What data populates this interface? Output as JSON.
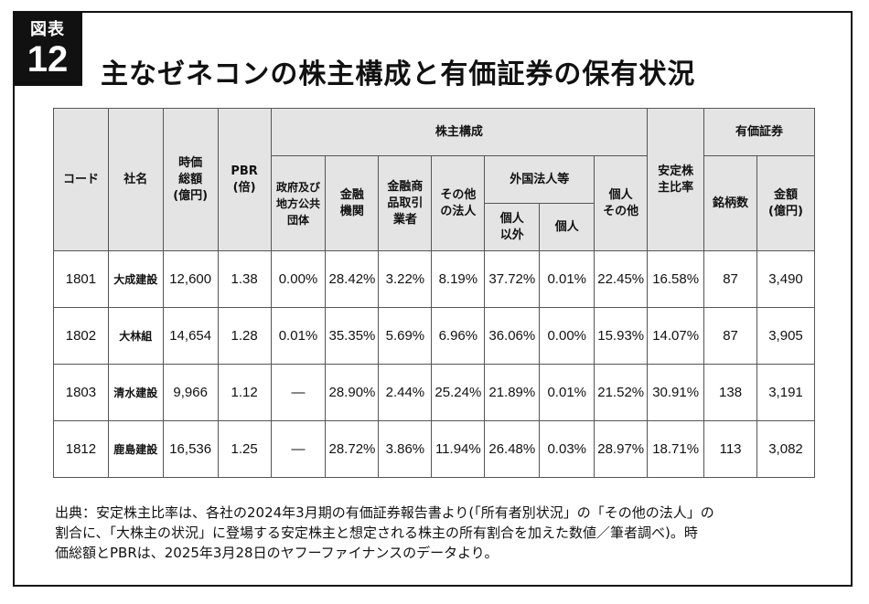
{
  "badge": {
    "label": "図表",
    "number": "12"
  },
  "title": "主なゼネコンの株主構成と有価証券の保有状況",
  "table": {
    "headers": {
      "code": "コード",
      "company": "社名",
      "market_cap": "時価\n総額\n(億円)",
      "pbr": "PBR\n(倍)",
      "ownership_group": "株主構成",
      "government": "政府及び\n地方公共\n団体",
      "financial": "金融\n機関",
      "securities": "金融商\n品取引\n業者",
      "other_corp": "その他\nの法人",
      "foreign_group": "外国法人等",
      "foreign_nonindiv": "個人\n以外",
      "foreign_indiv": "個人",
      "individual": "個人\nその他",
      "stable_ratio": "安定株\n主比率",
      "securities_group": "有価証券",
      "issues": "銘柄数",
      "amount": "金額\n(億円)"
    },
    "rows": [
      {
        "code": "1801",
        "company": "大成建設",
        "market_cap": "12,600",
        "pbr": "1.38",
        "government": "0.00%",
        "financial": "28.42%",
        "securities": "3.22%",
        "other_corp": "8.19%",
        "foreign_nonindiv": "37.72%",
        "foreign_indiv": "0.01%",
        "individual": "22.45%",
        "stable_ratio": "16.58%",
        "issues": "87",
        "amount": "3,490"
      },
      {
        "code": "1802",
        "company": "大林組",
        "market_cap": "14,654",
        "pbr": "1.28",
        "government": "0.01%",
        "financial": "35.35%",
        "securities": "5.69%",
        "other_corp": "6.96%",
        "foreign_nonindiv": "36.06%",
        "foreign_indiv": "0.00%",
        "individual": "15.93%",
        "stable_ratio": "14.07%",
        "issues": "87",
        "amount": "3,905"
      },
      {
        "code": "1803",
        "company": "清水建設",
        "market_cap": "9,966",
        "pbr": "1.12",
        "government": "—",
        "financial": "28.90%",
        "securities": "2.44%",
        "other_corp": "25.24%",
        "foreign_nonindiv": "21.89%",
        "foreign_indiv": "0.01%",
        "individual": "21.52%",
        "stable_ratio": "30.91%",
        "issues": "138",
        "amount": "3,191"
      },
      {
        "code": "1812",
        "company": "鹿島建設",
        "market_cap": "16,536",
        "pbr": "1.25",
        "government": "—",
        "financial": "28.72%",
        "securities": "3.86%",
        "other_corp": "11.94%",
        "foreign_nonindiv": "26.48%",
        "foreign_indiv": "0.03%",
        "individual": "28.97%",
        "stable_ratio": "18.71%",
        "issues": "113",
        "amount": "3,082"
      }
    ]
  },
  "note": "出典：安定株主比率は、各社の2024年3月期の有価証券報告書より(「所有者別状況」の「その他の法人」の\n割合に、「大株主の状況」に登場する安定株主と想定される株主の所有割合を加えた数値／筆者調べ)。時\n価総額とPBRは、2025年3月28日のヤフーファイナンスのデータより。"
}
